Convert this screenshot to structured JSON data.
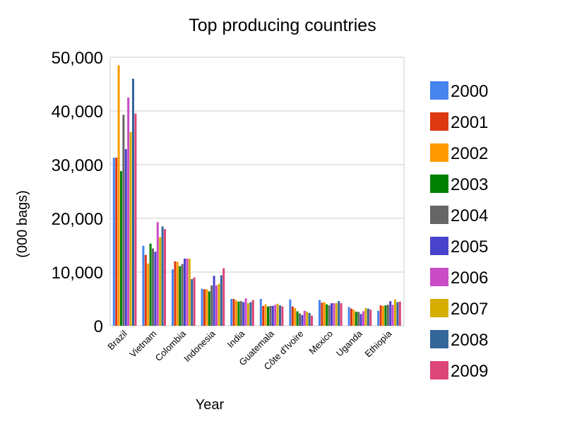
{
  "chart_data": {
    "type": "bar",
    "title": "Top producing countries",
    "xlabel": "Year",
    "ylabel": "(000 bags)",
    "ylim": [
      0,
      50000
    ],
    "yticks": [
      "0",
      "10,000",
      "20,000",
      "30,000",
      "40,000",
      "50,000"
    ],
    "grid": true,
    "legend_position": "right",
    "categories": [
      "Brazil",
      "Vietnam",
      "Colombia",
      "Indonesia",
      "India",
      "Guatemala",
      "Côte d'Ivoire",
      "Mexico",
      "Uganda",
      "Ethiopia"
    ],
    "series": [
      {
        "name": "2000",
        "color": "#4684ee",
        "values": [
          31300,
          14900,
          10500,
          6900,
          5000,
          5000,
          4900,
          4800,
          3500,
          2800
        ]
      },
      {
        "name": "2001",
        "color": "#dc3912",
        "values": [
          31300,
          13200,
          12000,
          6800,
          5000,
          3700,
          3600,
          4300,
          3200,
          3800
        ]
      },
      {
        "name": "2002",
        "color": "#ff9900",
        "values": [
          48500,
          11600,
          11900,
          6800,
          4700,
          4000,
          3300,
          4400,
          3000,
          3700
        ]
      },
      {
        "name": "2003",
        "color": "#008000",
        "values": [
          28800,
          15300,
          11100,
          6400,
          4500,
          3600,
          2700,
          4000,
          2600,
          3800
        ]
      },
      {
        "name": "2004",
        "color": "#666666",
        "values": [
          39300,
          14400,
          11500,
          7500,
          4600,
          3700,
          2300,
          3800,
          2600,
          3900
        ]
      },
      {
        "name": "2005",
        "color": "#4942cc",
        "values": [
          32900,
          13800,
          12500,
          9300,
          4400,
          3700,
          2000,
          4200,
          2200,
          4600
        ]
      },
      {
        "name": "2006",
        "color": "#cb4ac5",
        "values": [
          42500,
          19300,
          12500,
          7500,
          5100,
          3900,
          2800,
          4200,
          2700,
          3900
        ]
      },
      {
        "name": "2007",
        "color": "#d6ae00",
        "values": [
          36100,
          16500,
          12500,
          7800,
          4200,
          4100,
          2600,
          4200,
          3300,
          4900
        ]
      },
      {
        "name": "2008",
        "color": "#336699",
        "values": [
          46000,
          18500,
          8700,
          9400,
          4400,
          3800,
          2400,
          4600,
          3200,
          4400
        ]
      },
      {
        "name": "2009",
        "color": "#dd4477",
        "values": [
          39500,
          18000,
          9000,
          10700,
          4800,
          3600,
          1900,
          4200,
          3000,
          4500
        ]
      }
    ]
  }
}
